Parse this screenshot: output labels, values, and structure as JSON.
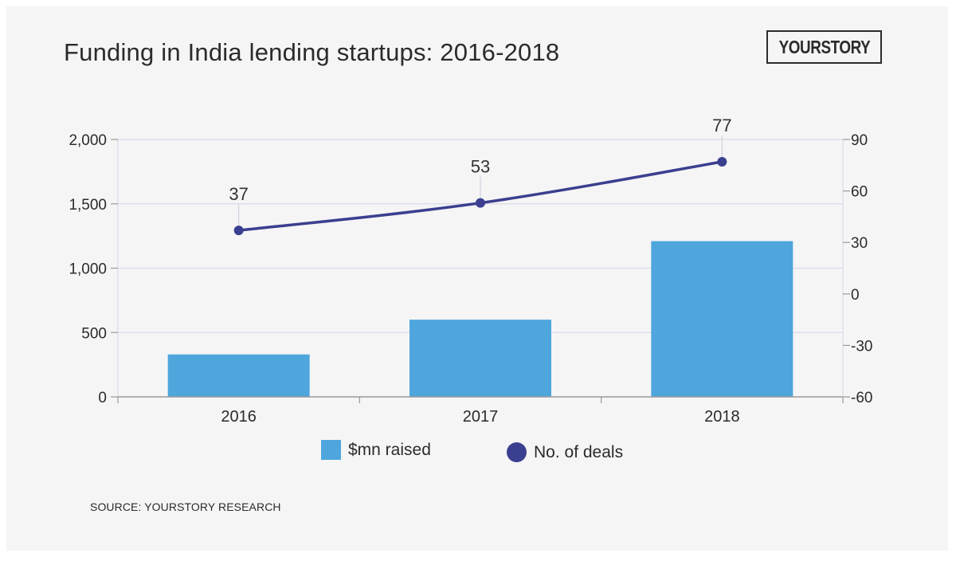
{
  "header": {
    "title": "Funding in India lending startups: 2016-2018",
    "logo_text": "YOURSTORY"
  },
  "footer": {
    "source": "SOURCE: YOURSTORY RESEARCH"
  },
  "colors": {
    "bar": "#4ea6dc",
    "line": "#3b3f8f",
    "grid": "#d9dae8",
    "axis": "#9a9a9a"
  },
  "chart_data": {
    "type": "bar",
    "title": "Funding in India lending startups: 2016-2018",
    "categories": [
      "2016",
      "2017",
      "2018"
    ],
    "series": [
      {
        "name": "$mn raised",
        "type": "bar",
        "axis": "left",
        "values": [
          330,
          600,
          1210
        ]
      },
      {
        "name": "No. of deals",
        "type": "line",
        "axis": "right",
        "values": [
          37,
          53,
          77
        ],
        "labels": [
          "37",
          "53",
          "77"
        ]
      }
    ],
    "y_left": {
      "ylim": [
        0,
        2000
      ],
      "ticks": [
        0,
        500,
        1000,
        1500,
        2000
      ],
      "tick_labels": [
        "0",
        "500",
        "1,000",
        "1,500",
        "2,000"
      ]
    },
    "y_right": {
      "ylim": [
        -60,
        90
      ],
      "ticks": [
        -60,
        -30,
        0,
        30,
        60,
        90
      ],
      "tick_labels": [
        "-60",
        "-30",
        "0",
        "30",
        "60",
        "90"
      ]
    },
    "xlabel": "",
    "ylabel": "",
    "grid": true,
    "legend": {
      "position": "bottom-center",
      "entries": [
        "$mn raised",
        "No. of deals"
      ]
    }
  }
}
